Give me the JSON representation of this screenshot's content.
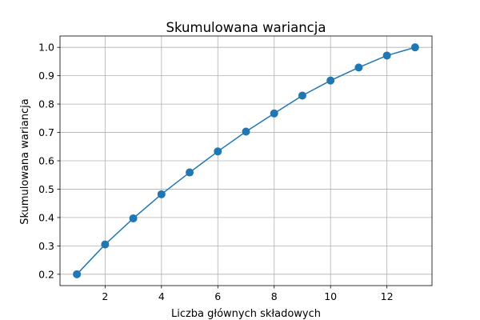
{
  "chart_data": {
    "type": "line",
    "title": "Skumulowana wariancja",
    "xlabel": "Liczba głównych składowych",
    "ylabel": "Skumulowana wariancja",
    "xlim": [
      0.4,
      13.6
    ],
    "ylim": [
      0.16,
      1.04
    ],
    "x_ticks": [
      2,
      4,
      6,
      8,
      10,
      12
    ],
    "x_tick_labels": [
      "2",
      "4",
      "6",
      "8",
      "10",
      "12"
    ],
    "y_ticks": [
      0.2,
      0.3,
      0.4,
      0.5,
      0.6,
      0.7,
      0.8,
      0.9,
      1.0
    ],
    "y_tick_labels": [
      "0.2",
      "0.3",
      "0.4",
      "0.5",
      "0.6",
      "0.7",
      "0.8",
      "0.9",
      "1.0"
    ],
    "grid": true,
    "marker": "circle",
    "line_color": "#1f77b4",
    "grid_color": "#b0b0b0",
    "x": [
      1,
      2,
      3,
      4,
      5,
      6,
      7,
      8,
      9,
      10,
      11,
      12,
      13
    ],
    "values": [
      0.2,
      0.305,
      0.397,
      0.482,
      0.559,
      0.633,
      0.703,
      0.767,
      0.83,
      0.883,
      0.929,
      0.971,
      1.0
    ]
  }
}
